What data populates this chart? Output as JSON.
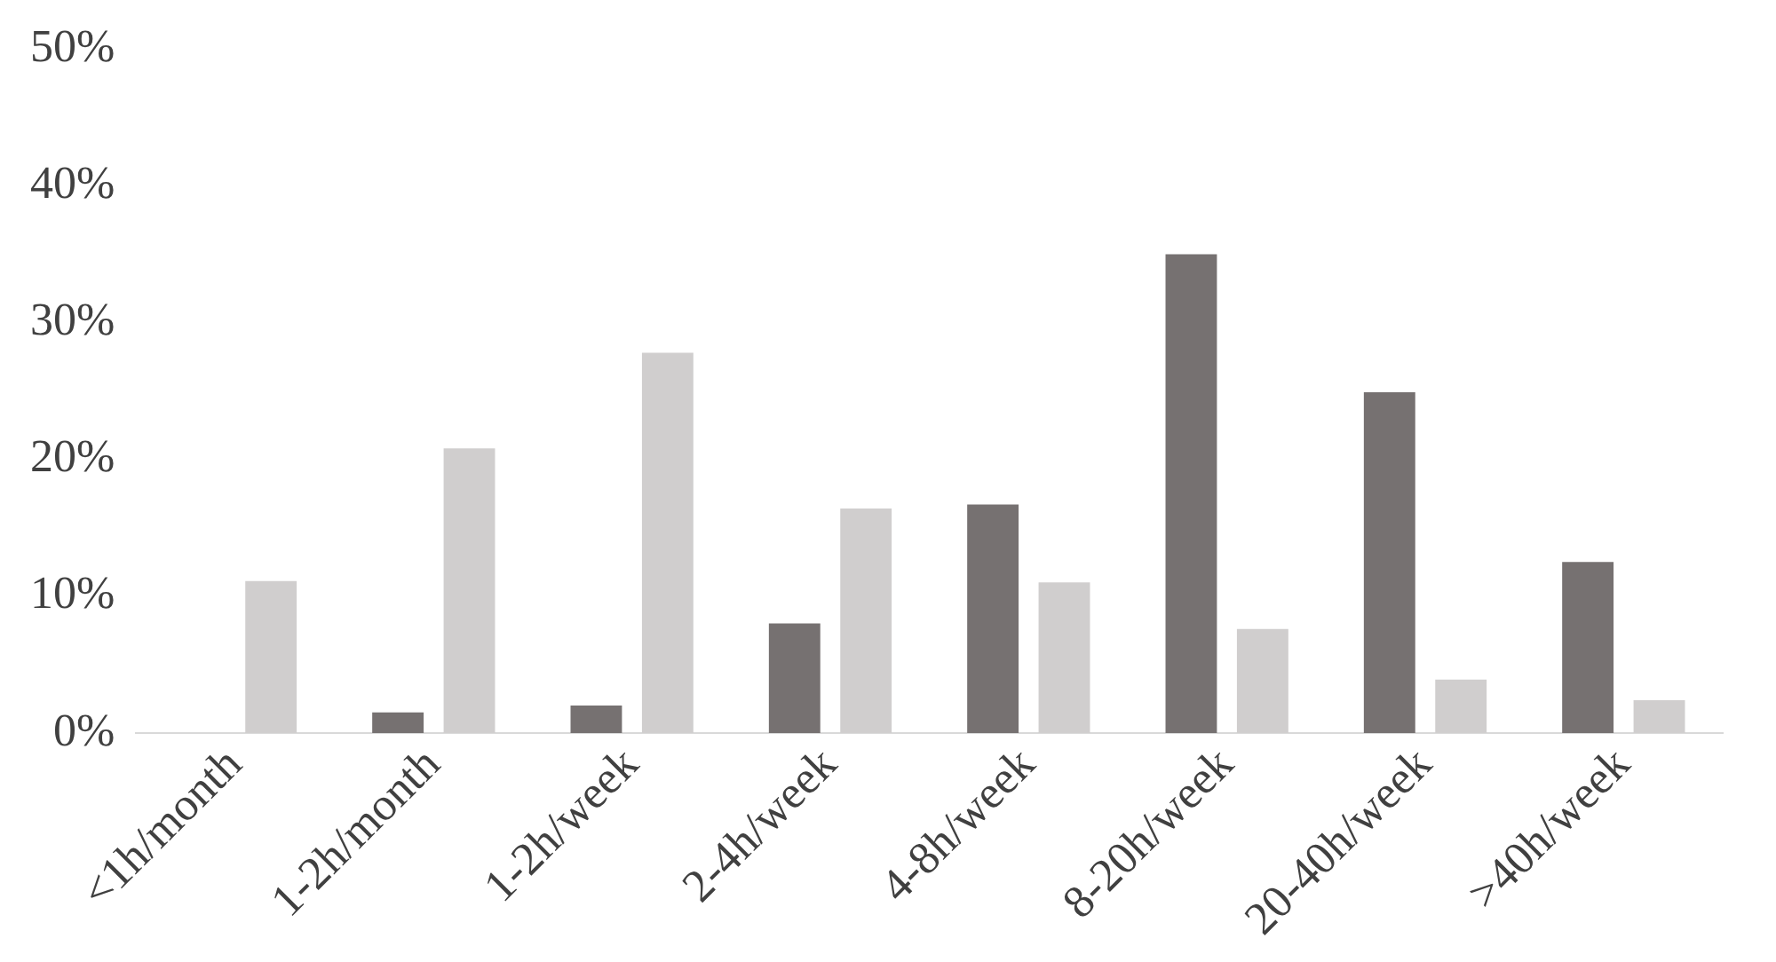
{
  "chart_data": {
    "type": "bar",
    "categories": [
      "<1h/month",
      "1-2h/month",
      "1-2h/week",
      "2-4h/week",
      "4-8h/week",
      "8-20h/week",
      "20-40h/week",
      ">40h/week"
    ],
    "series": [
      {
        "color": "#767171",
        "values": [
          0,
          1.5,
          2,
          8,
          16.7,
          35,
          24.9,
          12.5
        ]
      },
      {
        "color": "#d0cece",
        "values": [
          11.1,
          20.8,
          27.8,
          16.4,
          11,
          7.6,
          3.9,
          2.4
        ]
      }
    ],
    "ylim": [
      0,
      50
    ],
    "yticks": [
      {
        "value": 0,
        "label": "0%"
      },
      {
        "value": 10,
        "label": "10%"
      },
      {
        "value": 20,
        "label": "20%"
      },
      {
        "value": 30,
        "label": "30%"
      },
      {
        "value": 40,
        "label": "40%"
      },
      {
        "value": 50,
        "label": "50%"
      }
    ],
    "grid": false
  }
}
